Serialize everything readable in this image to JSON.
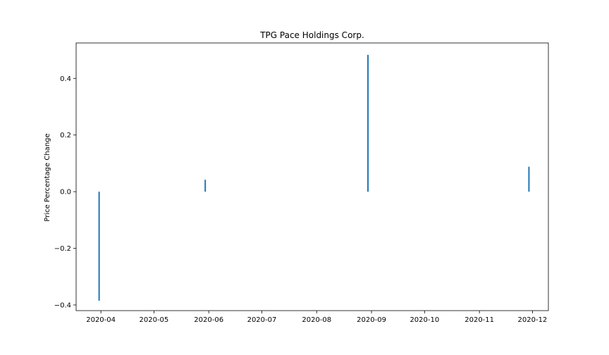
{
  "chart_data": {
    "type": "bar",
    "title": "TPG Pace Holdings Corp.",
    "xlabel": "",
    "ylabel": "Price Percentage Change",
    "x_axis_type": "date",
    "xlim": [
      "2020-03-18",
      "2020-12-10"
    ],
    "ylim": [
      -0.42,
      0.525
    ],
    "x_ticks": [
      {
        "date": "2020-04-01",
        "label": "2020-04"
      },
      {
        "date": "2020-05-01",
        "label": "2020-05"
      },
      {
        "date": "2020-06-01",
        "label": "2020-06"
      },
      {
        "date": "2020-07-01",
        "label": "2020-07"
      },
      {
        "date": "2020-08-01",
        "label": "2020-08"
      },
      {
        "date": "2020-09-01",
        "label": "2020-09"
      },
      {
        "date": "2020-10-01",
        "label": "2020-10"
      },
      {
        "date": "2020-11-01",
        "label": "2020-11"
      },
      {
        "date": "2020-12-01",
        "label": "2020-12"
      }
    ],
    "y_ticks": [
      {
        "value": 0.4,
        "label": "0.4"
      },
      {
        "value": 0.2,
        "label": "0.2"
      },
      {
        "value": 0.0,
        "label": "0.0"
      },
      {
        "value": -0.2,
        "label": "−0.2"
      },
      {
        "value": -0.4,
        "label": "−0.4"
      }
    ],
    "series": [
      {
        "color": "#1f77b4",
        "points": [
          {
            "x": "2020-03-31",
            "y": -0.385
          },
          {
            "x": "2020-05-30",
            "y": 0.042
          },
          {
            "x": "2020-08-30",
            "y": 0.483
          },
          {
            "x": "2020-11-29",
            "y": 0.088
          }
        ]
      }
    ],
    "grid": false,
    "legend": "none"
  }
}
